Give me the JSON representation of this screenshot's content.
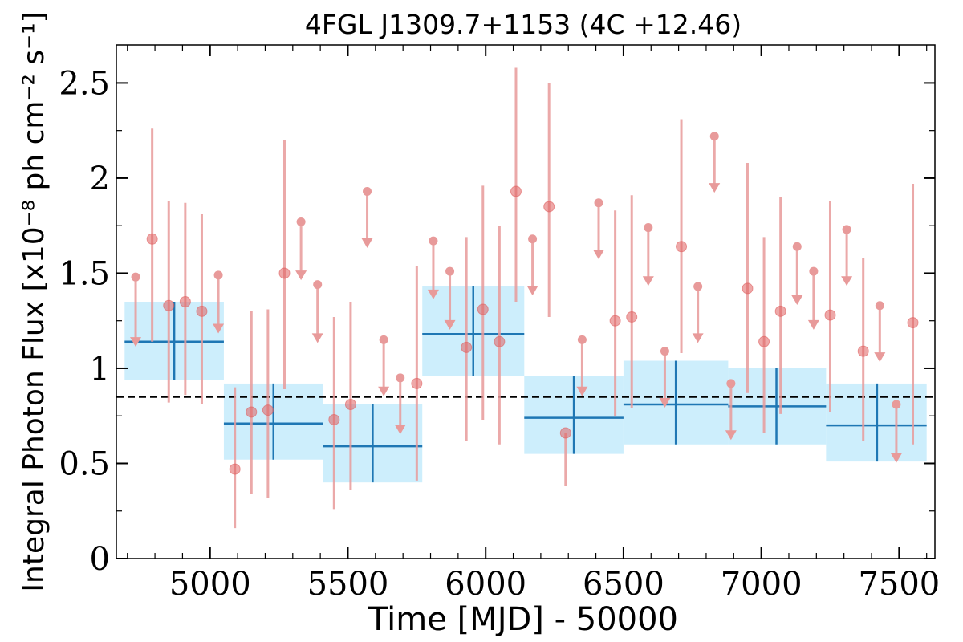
{
  "chart_data": {
    "type": "scatter",
    "title": "4FGL J1309.7+1153 (4C +12.46)",
    "xlabel": "Time [MJD] - 50000",
    "ylabel": "Integral Photon Flux [x10⁻⁸ ph cm⁻² s⁻¹]",
    "xlim": [
      4660,
      7630
    ],
    "ylim": [
      0,
      2.7
    ],
    "x_ticks": [
      5000,
      5500,
      6000,
      6500,
      7000,
      7500
    ],
    "x_tick_labels": [
      "5000",
      "5500",
      "6000",
      "6500",
      "7000",
      "7500"
    ],
    "y_ticks": [
      0,
      0.5,
      1,
      1.5,
      2,
      2.5
    ],
    "y_tick_labels": [
      "0",
      "0.5",
      "1",
      "1.5",
      "2",
      "2.5"
    ],
    "grid": false,
    "mean_flux": 0.85,
    "colors": {
      "detection": "#e06060",
      "errorbar": "#e89a9a",
      "bin_fill": "#cdeefc",
      "bin_line": "#1f77b4",
      "mean_line": "#000000"
    },
    "binned_series": [
      {
        "x": 4870,
        "x_lo": 4690,
        "x_hi": 5050,
        "y": 1.14,
        "y_lo": 0.94,
        "y_hi": 1.35
      },
      {
        "x": 5230,
        "x_lo": 5050,
        "x_hi": 5410,
        "y": 0.71,
        "y_lo": 0.52,
        "y_hi": 0.92
      },
      {
        "x": 5590,
        "x_lo": 5410,
        "x_hi": 5770,
        "y": 0.59,
        "y_lo": 0.4,
        "y_hi": 0.81
      },
      {
        "x": 5955,
        "x_lo": 5770,
        "x_hi": 6140,
        "y": 1.18,
        "y_lo": 0.96,
        "y_hi": 1.43
      },
      {
        "x": 6320,
        "x_lo": 6140,
        "x_hi": 6500,
        "y": 0.74,
        "y_lo": 0.55,
        "y_hi": 0.96
      },
      {
        "x": 6690,
        "x_lo": 6500,
        "x_hi": 6880,
        "y": 0.81,
        "y_lo": 0.6,
        "y_hi": 1.04
      },
      {
        "x": 7055,
        "x_lo": 6880,
        "x_hi": 7235,
        "y": 0.8,
        "y_lo": 0.6,
        "y_hi": 1.0
      },
      {
        "x": 7420,
        "x_lo": 7235,
        "x_hi": 7600,
        "y": 0.7,
        "y_lo": 0.51,
        "y_hi": 0.92
      }
    ],
    "detections": [
      {
        "x": 4790,
        "y": 1.68,
        "y_lo": 1.14,
        "y_hi": 2.26
      },
      {
        "x": 4850,
        "y": 1.33,
        "y_lo": 0.82,
        "y_hi": 1.88
      },
      {
        "x": 4910,
        "y": 1.35,
        "y_lo": 0.86,
        "y_hi": 1.87
      },
      {
        "x": 4970,
        "y": 1.3,
        "y_lo": 0.81,
        "y_hi": 1.81
      },
      {
        "x": 5090,
        "y": 0.47,
        "y_lo": 0.16,
        "y_hi": 0.9
      },
      {
        "x": 5150,
        "y": 0.77,
        "y_lo": 0.34,
        "y_hi": 1.3
      },
      {
        "x": 5210,
        "y": 0.78,
        "y_lo": 0.32,
        "y_hi": 1.31
      },
      {
        "x": 5270,
        "y": 1.5,
        "y_lo": 0.89,
        "y_hi": 2.2
      },
      {
        "x": 5450,
        "y": 0.73,
        "y_lo": 0.26,
        "y_hi": 1.27
      },
      {
        "x": 5510,
        "y": 0.81,
        "y_lo": 0.36,
        "y_hi": 1.35
      },
      {
        "x": 5750,
        "y": 0.92,
        "y_lo": 0.41,
        "y_hi": 1.54
      },
      {
        "x": 5930,
        "y": 1.11,
        "y_lo": 0.62,
        "y_hi": 1.69
      },
      {
        "x": 5990,
        "y": 1.31,
        "y_lo": 0.73,
        "y_hi": 1.96
      },
      {
        "x": 6050,
        "y": 1.14,
        "y_lo": 0.6,
        "y_hi": 1.75
      },
      {
        "x": 6110,
        "y": 1.93,
        "y_lo": 1.35,
        "y_hi": 2.58
      },
      {
        "x": 6230,
        "y": 1.85,
        "y_lo": 1.27,
        "y_hi": 2.5
      },
      {
        "x": 6290,
        "y": 0.66,
        "y_lo": 0.38,
        "y_hi": 0.66
      },
      {
        "x": 6470,
        "y": 1.25,
        "y_lo": 0.75,
        "y_hi": 1.83
      },
      {
        "x": 6530,
        "y": 1.27,
        "y_lo": 0.79,
        "y_hi": 1.91
      },
      {
        "x": 6710,
        "y": 1.64,
        "y_lo": 1.08,
        "y_hi": 2.31
      },
      {
        "x": 6950,
        "y": 1.42,
        "y_lo": 0.87,
        "y_hi": 2.08
      },
      {
        "x": 7010,
        "y": 1.14,
        "y_lo": 0.66,
        "y_hi": 1.69
      },
      {
        "x": 7070,
        "y": 1.3,
        "y_lo": 0.76,
        "y_hi": 1.9
      },
      {
        "x": 7250,
        "y": 1.28,
        "y_lo": 0.77,
        "y_hi": 1.88
      },
      {
        "x": 7370,
        "y": 1.09,
        "y_lo": 0.62,
        "y_hi": 1.58
      },
      {
        "x": 7550,
        "y": 1.24,
        "y_lo": 0.6,
        "y_hi": 1.97
      }
    ],
    "upper_limits": [
      {
        "x": 4730,
        "y": 1.48,
        "y_arrow": 1.13
      },
      {
        "x": 5030,
        "y": 1.49,
        "y_arrow": 1.2
      },
      {
        "x": 5330,
        "y": 1.77,
        "y_arrow": 1.48
      },
      {
        "x": 5390,
        "y": 1.44,
        "y_arrow": 1.15
      },
      {
        "x": 5570,
        "y": 1.93,
        "y_arrow": 1.65
      },
      {
        "x": 5630,
        "y": 1.15,
        "y_arrow": 0.87
      },
      {
        "x": 5690,
        "y": 0.95,
        "y_arrow": 0.67
      },
      {
        "x": 5810,
        "y": 1.67,
        "y_arrow": 1.38
      },
      {
        "x": 5870,
        "y": 1.51,
        "y_arrow": 1.22
      },
      {
        "x": 6170,
        "y": 1.68,
        "y_arrow": 1.4
      },
      {
        "x": 6350,
        "y": 1.15,
        "y_arrow": 0.87
      },
      {
        "x": 6410,
        "y": 1.87,
        "y_arrow": 1.59
      },
      {
        "x": 6590,
        "y": 1.74,
        "y_arrow": 1.45
      },
      {
        "x": 6650,
        "y": 1.09,
        "y_arrow": 0.81
      },
      {
        "x": 6770,
        "y": 1.43,
        "y_arrow": 1.15
      },
      {
        "x": 6830,
        "y": 2.22,
        "y_arrow": 1.94
      },
      {
        "x": 6890,
        "y": 0.92,
        "y_arrow": 0.64
      },
      {
        "x": 7130,
        "y": 1.64,
        "y_arrow": 1.35
      },
      {
        "x": 7190,
        "y": 1.51,
        "y_arrow": 1.22
      },
      {
        "x": 7310,
        "y": 1.73,
        "y_arrow": 1.45
      },
      {
        "x": 7430,
        "y": 1.33,
        "y_arrow": 1.05
      },
      {
        "x": 7490,
        "y": 0.81,
        "y_arrow": 0.52
      }
    ]
  }
}
